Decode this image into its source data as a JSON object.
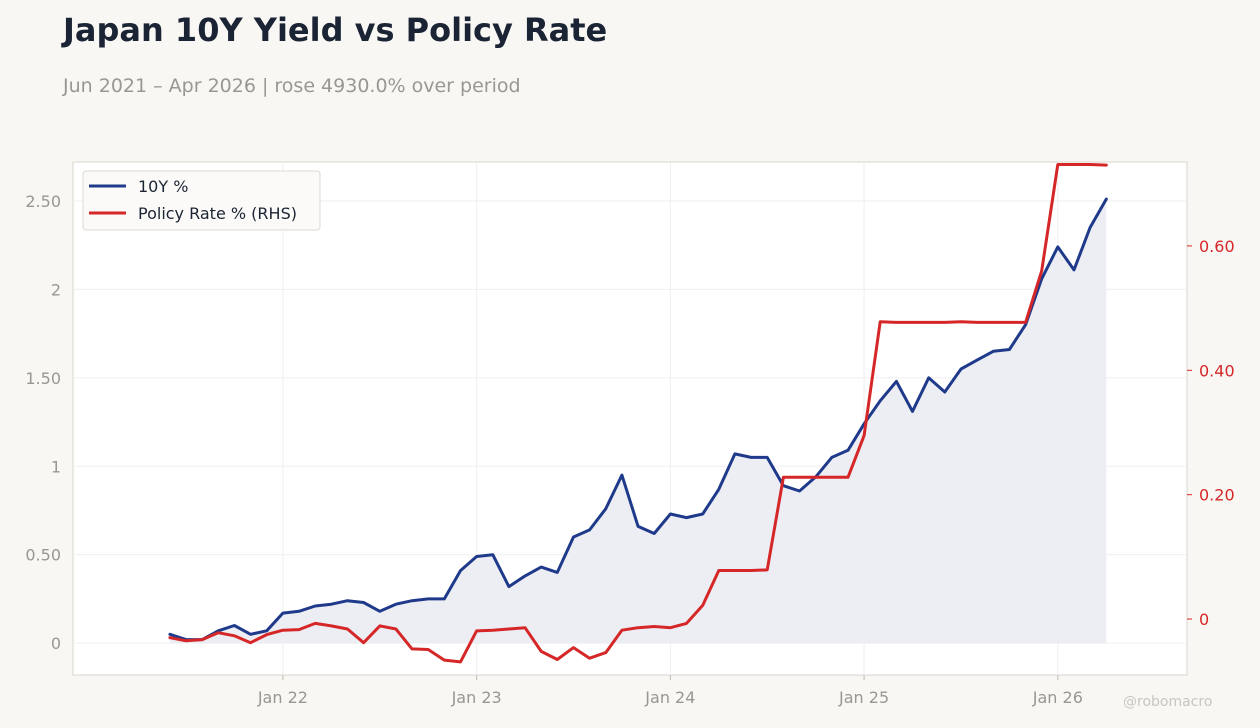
{
  "header": {
    "title": "Japan 10Y Yield vs Policy Rate",
    "subtitle": "Jun 2021 – Apr 2026 | rose 4930.0% over period"
  },
  "watermark": "@robomacro",
  "colors": {
    "background": "#f9f7f4",
    "plot_background": "#ffffff",
    "primary_series": "#1f3a8a",
    "secondary_series": "#d62728",
    "fill": "#eceef4",
    "left_tick_text": "#9a9690",
    "right_tick_text": "#d62728",
    "grid": "#efefef"
  },
  "chart_data": {
    "type": "line",
    "x": [
      "2021-06",
      "2021-07",
      "2021-08",
      "2021-09",
      "2021-10",
      "2021-11",
      "2021-12",
      "2022-01",
      "2022-02",
      "2022-03",
      "2022-04",
      "2022-05",
      "2022-06",
      "2022-07",
      "2022-08",
      "2022-09",
      "2022-10",
      "2022-11",
      "2022-12",
      "2023-01",
      "2023-02",
      "2023-03",
      "2023-04",
      "2023-05",
      "2023-06",
      "2023-07",
      "2023-08",
      "2023-09",
      "2023-10",
      "2023-11",
      "2023-12",
      "2024-01",
      "2024-02",
      "2024-03",
      "2024-04",
      "2024-05",
      "2024-06",
      "2024-07",
      "2024-08",
      "2024-09",
      "2024-10",
      "2024-11",
      "2024-12",
      "2025-01",
      "2025-02",
      "2025-03",
      "2025-04",
      "2025-05",
      "2025-06",
      "2025-07",
      "2025-08",
      "2025-09",
      "2025-10",
      "2025-11",
      "2025-12",
      "2026-01",
      "2026-02",
      "2026-03",
      "2026-04"
    ],
    "series": [
      {
        "name": "10Y %",
        "axis": "left",
        "fill": true,
        "values": [
          0.05,
          0.02,
          0.02,
          0.07,
          0.1,
          0.05,
          0.07,
          0.17,
          0.18,
          0.21,
          0.22,
          0.24,
          0.23,
          0.18,
          0.22,
          0.24,
          0.25,
          0.25,
          0.41,
          0.49,
          0.5,
          0.32,
          0.38,
          0.43,
          0.4,
          0.6,
          0.64,
          0.76,
          0.95,
          0.66,
          0.62,
          0.73,
          0.71,
          0.73,
          0.87,
          1.07,
          1.05,
          1.05,
          0.89,
          0.86,
          0.94,
          1.05,
          1.09,
          1.24,
          1.37,
          1.48,
          1.31,
          1.5,
          1.42,
          1.55,
          1.6,
          1.65,
          1.66,
          1.8,
          2.06,
          2.24,
          2.11,
          2.35,
          2.51
        ]
      },
      {
        "name": "Policy Rate % (RHS)",
        "axis": "right",
        "fill": false,
        "values": [
          -0.03,
          -0.035,
          -0.033,
          -0.022,
          -0.027,
          -0.038,
          -0.025,
          -0.018,
          -0.017,
          -0.007,
          -0.011,
          -0.016,
          -0.038,
          -0.011,
          -0.016,
          -0.048,
          -0.049,
          -0.066,
          -0.069,
          -0.019,
          -0.018,
          -0.016,
          -0.014,
          -0.052,
          -0.065,
          -0.046,
          -0.063,
          -0.054,
          -0.018,
          -0.014,
          -0.012,
          -0.014,
          -0.007,
          0.022,
          0.078,
          0.078,
          0.078,
          0.079,
          0.228,
          0.228,
          0.228,
          0.228,
          0.228,
          0.295,
          0.478,
          0.477,
          0.477,
          0.477,
          0.477,
          0.478,
          0.477,
          0.477,
          0.477,
          0.477,
          0.56,
          0.731,
          0.731,
          0.731,
          0.73
        ]
      }
    ],
    "xticks": [
      "Jan 22",
      "Jan 23",
      "Jan 24",
      "Jan 25",
      "Jan 26"
    ],
    "yticks_left": [
      "0",
      "0.50",
      "1",
      "1.50",
      "2",
      "2.50"
    ],
    "yticks_right": [
      "0",
      "0.20",
      "0.40",
      "0.60"
    ],
    "ylim_left": [
      -0.18,
      2.72
    ],
    "ylim_right": [
      -0.09,
      0.735
    ],
    "grid": true,
    "legend_position": "top-left"
  }
}
